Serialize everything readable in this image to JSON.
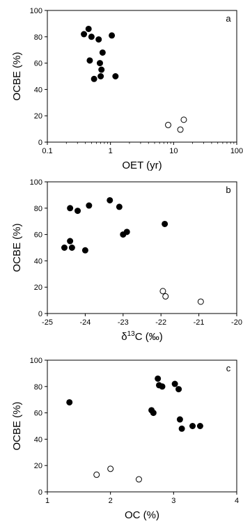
{
  "chart_data": [
    {
      "type": "scatter",
      "panel_label": "a",
      "xlabel": "OET (yr)",
      "ylabel": "OCBE (%)",
      "xscale": "log",
      "xlim": [
        0.1,
        100
      ],
      "ylim": [
        0,
        100
      ],
      "xticks": [
        0.1,
        1,
        10,
        100
      ],
      "xtick_labels": [
        "0.1",
        "1",
        "10",
        "100"
      ],
      "yticks": [
        0,
        20,
        40,
        60,
        80,
        100
      ],
      "ytick_labels": [
        "0",
        "20",
        "40",
        "60",
        "80",
        "100"
      ],
      "grid": false,
      "legend": "none",
      "series": [
        {
          "marker": "filled-circle",
          "color": "#000000",
          "points": [
            [
              0.38,
              82
            ],
            [
              0.45,
              86
            ],
            [
              0.5,
              80
            ],
            [
              0.65,
              78
            ],
            [
              1.05,
              81
            ],
            [
              0.75,
              68
            ],
            [
              0.47,
              62
            ],
            [
              0.68,
              60
            ],
            [
              0.72,
              55
            ],
            [
              0.7,
              50
            ],
            [
              0.55,
              48
            ],
            [
              1.2,
              50
            ]
          ]
        },
        {
          "marker": "open-circle",
          "color": "#000000",
          "points": [
            [
              8.2,
              13
            ],
            [
              12.8,
              9.5
            ],
            [
              14.5,
              17
            ]
          ]
        }
      ]
    },
    {
      "type": "scatter",
      "panel_label": "b",
      "xlabel_prefix": "δ",
      "xlabel_sup": "13",
      "xlabel_suffix": "C (‰)",
      "ylabel": "OCBE (%)",
      "xlim": [
        -25,
        -20
      ],
      "ylim": [
        0,
        100
      ],
      "xticks": [
        -25,
        -24,
        -23,
        -22,
        -21,
        -20
      ],
      "xtick_labels": [
        "-25",
        "-24",
        "-23",
        "-22",
        "-21",
        "-20"
      ],
      "yticks": [
        0,
        20,
        40,
        60,
        80,
        100
      ],
      "ytick_labels": [
        "0",
        "20",
        "40",
        "60",
        "80",
        "100"
      ],
      "grid": false,
      "legend": "none",
      "series": [
        {
          "marker": "filled-circle",
          "color": "#000000",
          "points": [
            [
              -24.4,
              80
            ],
            [
              -24.2,
              78
            ],
            [
              -23.9,
              82
            ],
            [
              -23.35,
              86
            ],
            [
              -23.1,
              81
            ],
            [
              -21.9,
              68
            ],
            [
              -22.9,
              62
            ],
            [
              -23.0,
              60
            ],
            [
              -24.4,
              55
            ],
            [
              -24.55,
              50
            ],
            [
              -24.35,
              50
            ],
            [
              -24.0,
              48
            ]
          ]
        },
        {
          "marker": "open-circle",
          "color": "#000000",
          "points": [
            [
              -21.95,
              17
            ],
            [
              -21.88,
              13
            ],
            [
              -20.95,
              9
            ]
          ]
        }
      ]
    },
    {
      "type": "scatter",
      "panel_label": "c",
      "xlabel": "OC (%)",
      "ylabel": "OCBE (%)",
      "xlim": [
        1,
        4
      ],
      "ylim": [
        0,
        100
      ],
      "xticks": [
        1,
        2,
        3,
        4
      ],
      "xtick_labels": [
        "1",
        "2",
        "3",
        "4"
      ],
      "yticks": [
        0,
        20,
        40,
        60,
        80,
        100
      ],
      "ytick_labels": [
        "0",
        "20",
        "40",
        "60",
        "80",
        "100"
      ],
      "grid": false,
      "legend": "none",
      "series": [
        {
          "marker": "filled-circle",
          "color": "#000000",
          "points": [
            [
              1.35,
              68
            ],
            [
              2.75,
              86
            ],
            [
              2.77,
              81
            ],
            [
              2.82,
              80
            ],
            [
              3.02,
              82
            ],
            [
              3.08,
              78
            ],
            [
              2.65,
              62
            ],
            [
              2.68,
              60
            ],
            [
              3.1,
              55
            ],
            [
              3.13,
              48
            ],
            [
              3.3,
              50
            ],
            [
              3.42,
              50
            ]
          ]
        },
        {
          "marker": "open-circle",
          "color": "#000000",
          "points": [
            [
              1.78,
              13
            ],
            [
              2.0,
              17.5
            ],
            [
              2.45,
              9.5
            ]
          ]
        }
      ]
    }
  ]
}
